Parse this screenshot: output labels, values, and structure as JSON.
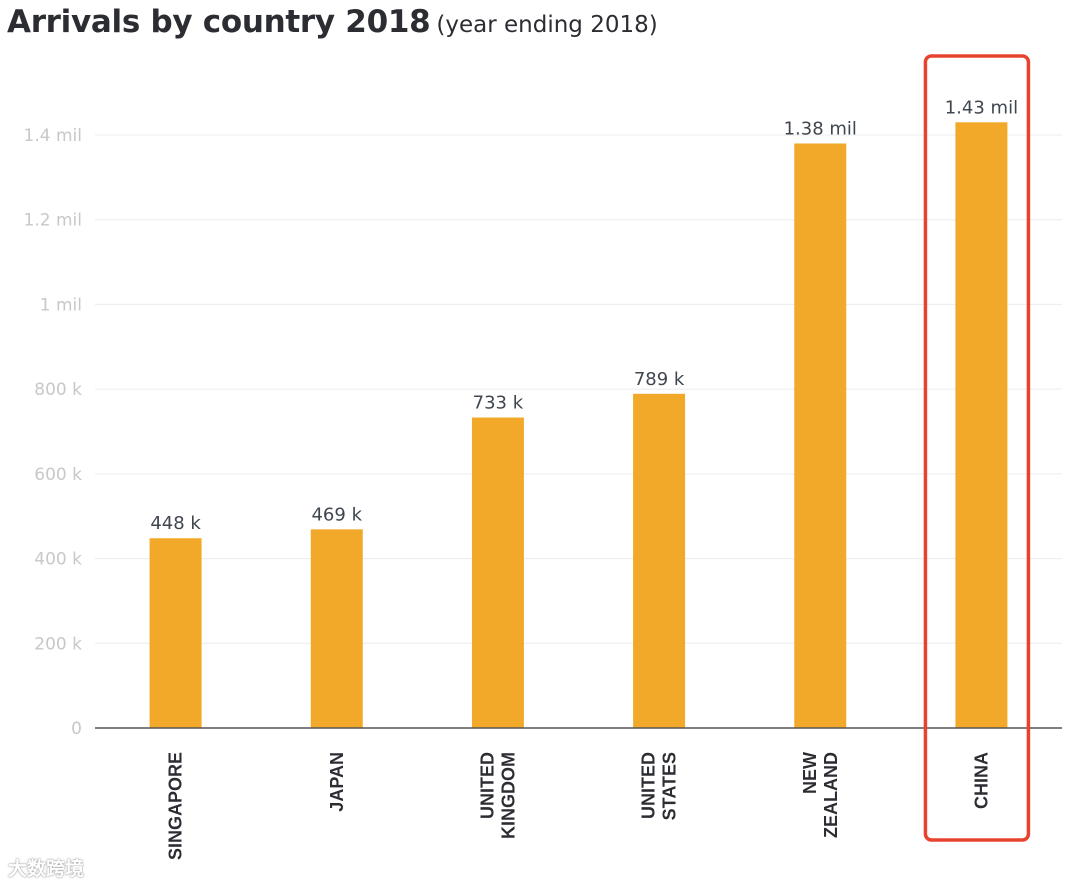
{
  "header": {
    "title": "Arrivals by country 2018",
    "subtitle": "(year ending 2018)"
  },
  "watermark": "大数跨境",
  "colors": {
    "bar": "#f2a92a",
    "highlight": "#e8432f",
    "grid": "#ececec",
    "axis": "#555555",
    "tick_text": "#c8c8c8",
    "label_text": "#3f4650"
  },
  "chart_data": {
    "type": "bar",
    "title": "Arrivals by country 2018",
    "subtitle": "(year ending 2018)",
    "categories": [
      [
        "SINGAPORE"
      ],
      [
        "JAPAN"
      ],
      [
        "UNITED",
        "KINGDOM"
      ],
      [
        "UNITED",
        "STATES"
      ],
      [
        "NEW",
        "ZEALAND"
      ],
      [
        "CHINA"
      ]
    ],
    "values": [
      448000,
      469000,
      733000,
      789000,
      1380000,
      1430000
    ],
    "data_labels": [
      "448 k",
      "469 k",
      "733 k",
      "789 k",
      "1.38 mil",
      "1.43 mil"
    ],
    "ylim": [
      0,
      1400000
    ],
    "yticks": [
      0,
      200000,
      400000,
      600000,
      800000,
      1000000,
      1200000,
      1400000
    ],
    "ytick_labels": [
      "0",
      "200 k",
      "400 k",
      "600 k",
      "800 k",
      "1 mil",
      "1.2 mil",
      "1.4 mil"
    ],
    "grid": true,
    "highlighted_category": "CHINA",
    "legend": "none"
  }
}
